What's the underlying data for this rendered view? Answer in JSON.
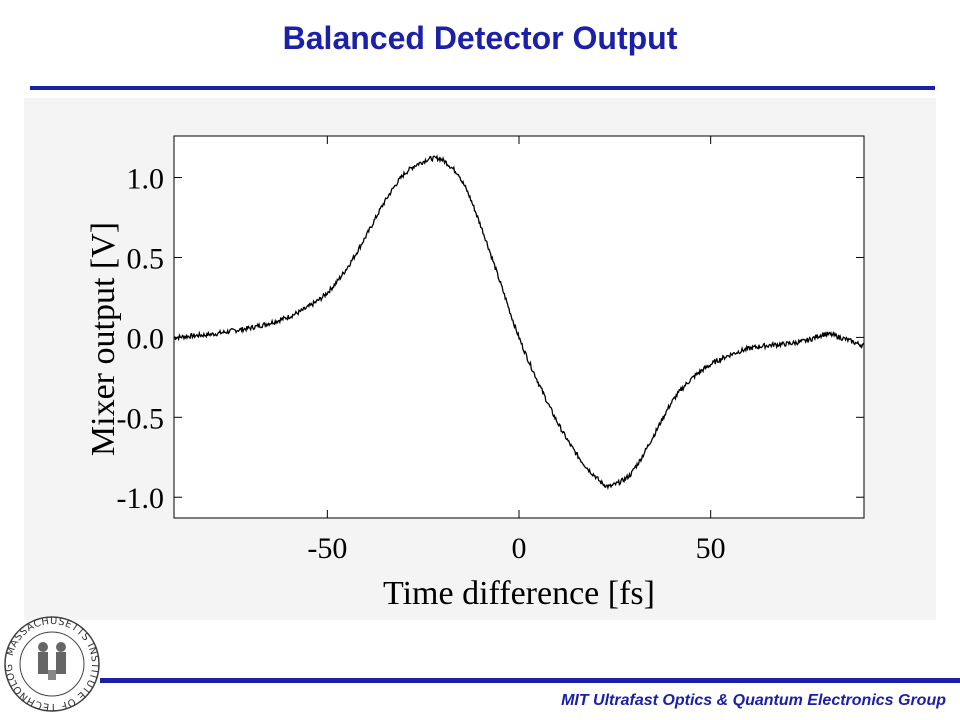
{
  "slide": {
    "title": "Balanced Detector Output",
    "footer": "MIT Ultrafast Optics & Quantum Electronics Group",
    "accent_color": "#1a20a8",
    "logo": {
      "text": "MASSACHUSETTS INSTITUTE OF TECHNOLOGY"
    }
  },
  "chart_data": {
    "type": "line",
    "title": "",
    "xlabel": "Time difference [fs]",
    "ylabel": "Mixer output [V]",
    "xlim": [
      -90,
      90
    ],
    "ylim": [
      -1.13,
      1.26
    ],
    "xticks": [
      -50,
      0,
      50
    ],
    "xtick_labels": [
      "-50",
      "0",
      "50"
    ],
    "yticks": [
      1.0,
      0.5,
      0.0,
      -0.5,
      -1.0
    ],
    "ytick_labels": [
      "1.0",
      "0.5",
      "0.0",
      "-0.5",
      "-1.0"
    ],
    "grid": false,
    "legend": "none",
    "line_color": "#000000",
    "x": [
      -90,
      -85,
      -80,
      -75,
      -70,
      -65,
      -60,
      -55,
      -50,
      -45,
      -40,
      -35,
      -30,
      -25,
      -22,
      -20,
      -17,
      -15,
      -10,
      -5,
      0,
      5,
      10,
      15,
      20,
      23,
      25,
      28,
      30,
      35,
      40,
      45,
      50,
      55,
      60,
      65,
      70,
      75,
      80,
      85,
      90
    ],
    "y": [
      0.0,
      0.01,
      0.02,
      0.04,
      0.06,
      0.09,
      0.13,
      0.19,
      0.28,
      0.43,
      0.63,
      0.85,
      1.02,
      1.1,
      1.12,
      1.11,
      1.05,
      0.98,
      0.7,
      0.35,
      0.0,
      -0.28,
      -0.53,
      -0.73,
      -0.87,
      -0.93,
      -0.92,
      -0.88,
      -0.82,
      -0.62,
      -0.4,
      -0.26,
      -0.17,
      -0.11,
      -0.07,
      -0.05,
      -0.04,
      -0.02,
      0.02,
      -0.01,
      -0.05
    ]
  }
}
